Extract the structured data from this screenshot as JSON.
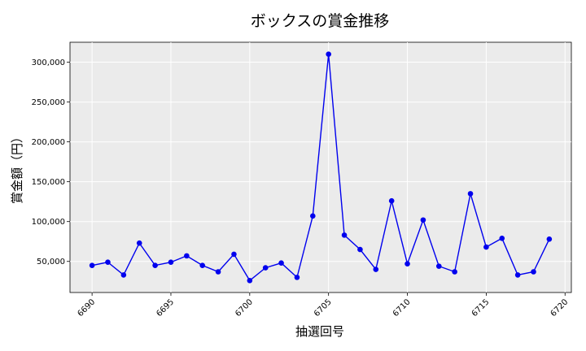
{
  "chart_data": {
    "type": "line",
    "title": "ボックスの賞金推移",
    "xlabel": "抽選回号",
    "ylabel": "賞金額（円）",
    "xlim": [
      6688.6,
      6720.4
    ],
    "ylim": [
      11000,
      325000
    ],
    "xticks": [
      6690,
      6695,
      6700,
      6705,
      6710,
      6715,
      6720
    ],
    "yticks": [
      50000,
      100000,
      150000,
      200000,
      250000,
      300000
    ],
    "ytick_labels": [
      "50,000",
      "100,000",
      "150,000",
      "200,000",
      "250,000",
      "300,000"
    ],
    "grid": true,
    "series": [
      {
        "color": "#0000ee",
        "x": [
          6690,
          6691,
          6692,
          6693,
          6694,
          6695,
          6696,
          6697,
          6698,
          6699,
          6700,
          6701,
          6702,
          6703,
          6704,
          6705,
          6706,
          6707,
          6708,
          6709,
          6710,
          6711,
          6712,
          6713,
          6714,
          6715,
          6716,
          6717,
          6718,
          6719
        ],
        "y": [
          45000,
          49000,
          33000,
          73000,
          45000,
          49000,
          57000,
          45000,
          37000,
          59000,
          26000,
          42000,
          48000,
          30000,
          107000,
          310000,
          83000,
          65000,
          40000,
          126000,
          47000,
          102000,
          44000,
          37000,
          135000,
          68000,
          79000,
          33000,
          37000,
          78000
        ]
      }
    ]
  },
  "colors": {
    "plot_bg": "#ebebeb",
    "grid": "#ffffff",
    "line": "#0000ee"
  }
}
